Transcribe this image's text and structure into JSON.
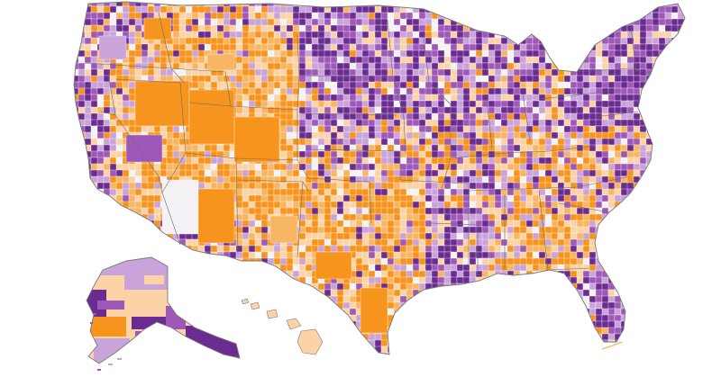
{
  "map": {
    "type": "county-choropleth",
    "region": "United States",
    "palette": {
      "purple_dark": "#6a2c91",
      "purple_mid": "#9e58b8",
      "purple_light": "#c9a3d9",
      "neutral": "#f4f2f4",
      "orange_light": "#fbd3a6",
      "orange_mid": "#f8b663",
      "orange_dark": "#f7941d",
      "border": "#6b6b6b",
      "background": "#ffffff"
    },
    "regions": [
      {
        "id": "contiguous-us",
        "lean": "mixed"
      },
      {
        "id": "alaska",
        "lean": "mixed"
      },
      {
        "id": "hawaii",
        "lean": "orange"
      }
    ]
  }
}
